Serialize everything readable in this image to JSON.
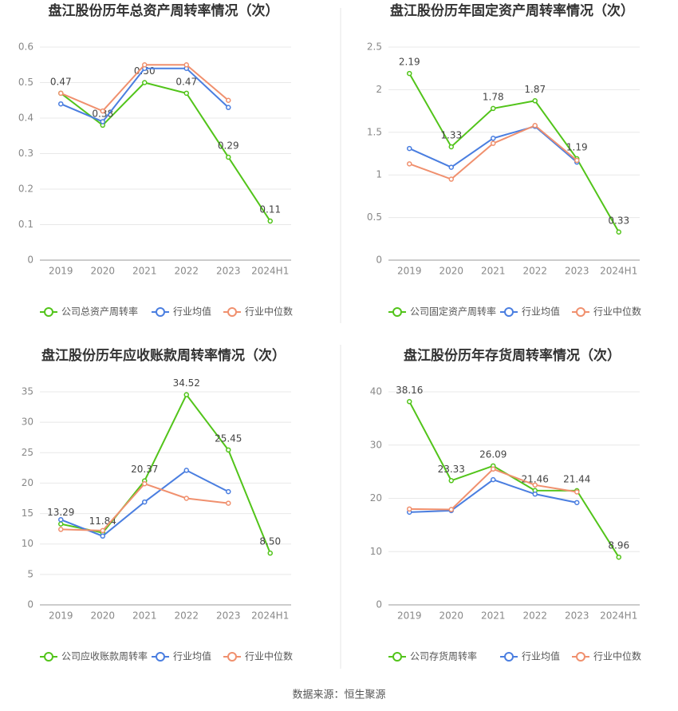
{
  "chart_data": [
    {
      "type": "line",
      "title": "盘江股份历年总资产周转率情况（次）",
      "categories": [
        "2019",
        "2020",
        "2021",
        "2022",
        "2023",
        "2024H1"
      ],
      "ylim": [
        0,
        0.6
      ],
      "yticks": [
        0,
        0.1,
        0.2,
        0.3,
        0.4,
        0.5,
        0.6
      ],
      "grid": true,
      "series": [
        {
          "name": "公司总资产周转率",
          "color": "#52c41a",
          "values": [
            0.47,
            0.38,
            0.5,
            0.47,
            0.29,
            0.11
          ],
          "value_labels": [
            "0.47",
            "0.38",
            "0.50",
            "0.47",
            "0.29",
            "0.11"
          ]
        },
        {
          "name": "行业均值",
          "color": "#4a7ee0",
          "values": [
            0.44,
            0.39,
            0.54,
            0.54,
            0.43,
            null
          ]
        },
        {
          "name": "行业中位数",
          "color": "#f0906e",
          "values": [
            0.47,
            0.42,
            0.55,
            0.55,
            0.45,
            null
          ]
        }
      ]
    },
    {
      "type": "line",
      "title": "盘江股份历年固定资产周转率情况（次）",
      "categories": [
        "2019",
        "2020",
        "2021",
        "2022",
        "2023",
        "2024H1"
      ],
      "ylim": [
        0,
        2.5
      ],
      "yticks": [
        0,
        0.5,
        1,
        1.5,
        2,
        2.5
      ],
      "grid": true,
      "series": [
        {
          "name": "公司固定资产周转率",
          "color": "#52c41a",
          "values": [
            2.19,
            1.33,
            1.78,
            1.87,
            1.19,
            0.33
          ]
        },
        {
          "name": "行业均值",
          "color": "#4a7ee0",
          "values": [
            1.31,
            1.09,
            1.43,
            1.57,
            1.15,
            null
          ]
        },
        {
          "name": "行业中位数",
          "color": "#f0906e",
          "values": [
            1.13,
            0.95,
            1.37,
            1.58,
            1.17,
            null
          ]
        }
      ]
    },
    {
      "type": "line",
      "title": "盘江股份历年应收账款周转率情况（次）",
      "categories": [
        "2019",
        "2020",
        "2021",
        "2022",
        "2023",
        "2024H1"
      ],
      "ylim": [
        0,
        35
      ],
      "yticks": [
        0,
        5,
        10,
        15,
        20,
        25,
        30,
        35
      ],
      "grid": true,
      "series": [
        {
          "name": "公司应收账款周转率",
          "color": "#52c41a",
          "values": [
            13.29,
            11.84,
            20.37,
            34.52,
            25.45,
            8.5
          ],
          "value_labels": [
            "13.29",
            "11.84",
            "20.37",
            "34.52",
            "25.45",
            "8.50"
          ]
        },
        {
          "name": "行业均值",
          "color": "#4a7ee0",
          "values": [
            14.0,
            11.3,
            16.9,
            22.1,
            18.6,
            null
          ]
        },
        {
          "name": "行业中位数",
          "color": "#f0906e",
          "values": [
            12.4,
            12.2,
            19.9,
            17.5,
            16.7,
            null
          ]
        }
      ]
    },
    {
      "type": "line",
      "title": "盘江股份历年存货周转率情况（次）",
      "categories": [
        "2019",
        "2020",
        "2021",
        "2022",
        "2023",
        "2024H1"
      ],
      "ylim": [
        0,
        40
      ],
      "yticks": [
        0,
        10,
        20,
        30,
        40
      ],
      "grid": true,
      "series": [
        {
          "name": "公司存货周转率",
          "color": "#52c41a",
          "values": [
            38.16,
            23.33,
            26.09,
            21.46,
            21.44,
            8.96
          ]
        },
        {
          "name": "行业均值",
          "color": "#4a7ee0",
          "values": [
            17.4,
            17.7,
            23.5,
            20.8,
            19.2,
            null
          ]
        },
        {
          "name": "行业中位数",
          "color": "#f0906e",
          "values": [
            18.0,
            17.9,
            25.5,
            22.5,
            21.2,
            null
          ]
        }
      ]
    }
  ],
  "source": "数据来源：恒生聚源"
}
